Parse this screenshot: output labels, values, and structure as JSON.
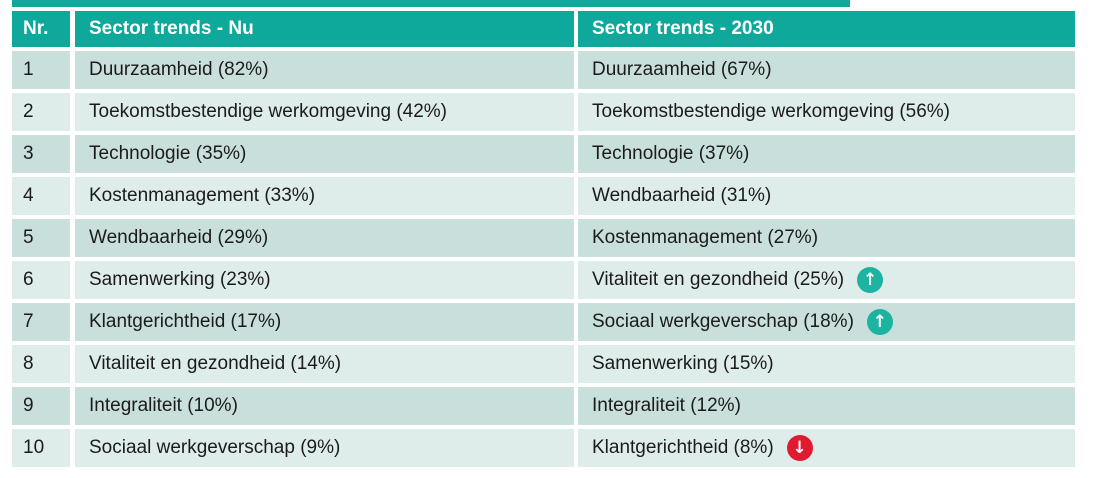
{
  "table": {
    "headers": {
      "nr": "Nr.",
      "now": "Sector trends - Nu",
      "future": "Sector trends - 2030"
    },
    "rows": [
      {
        "nr": "1",
        "now": "Duurzaamheid (82%)",
        "future": "Duurzaamheid (67%)",
        "future_trend": null
      },
      {
        "nr": "2",
        "now": "Toekomstbestendige werkomgeving (42%)",
        "future": "Toekomstbestendige werkomgeving (56%)",
        "future_trend": null
      },
      {
        "nr": "3",
        "now": "Technologie (35%)",
        "future": "Technologie (37%)",
        "future_trend": null
      },
      {
        "nr": "4",
        "now": "Kostenmanagement (33%)",
        "future": "Wendbaarheid (31%)",
        "future_trend": null
      },
      {
        "nr": "5",
        "now": "Wendbaarheid (29%)",
        "future": "Kostenmanagement (27%)",
        "future_trend": null
      },
      {
        "nr": "6",
        "now": "Samenwerking (23%)",
        "future": "Vitaliteit en gezondheid (25%)",
        "future_trend": "up"
      },
      {
        "nr": "7",
        "now": "Klantgerichtheid (17%)",
        "future": "Sociaal werkgeverschap (18%)",
        "future_trend": "up"
      },
      {
        "nr": "8",
        "now": "Vitaliteit en gezondheid (14%)",
        "future": "Samenwerking (15%)",
        "future_trend": null
      },
      {
        "nr": "9",
        "now": "Integraliteit (10%)",
        "future": "Integraliteit (12%)",
        "future_trend": null
      },
      {
        "nr": "10",
        "now": "Sociaal werkgeverschap (9%)",
        "future": "Klantgerichtheid (8%)",
        "future_trend": "down"
      }
    ]
  },
  "icons": {
    "trend_up_icon": "↑",
    "trend_down_icon": "↓"
  },
  "colors": {
    "header_teal": "#0FA99B",
    "accent_bar": "#0FA99B",
    "row_shade_dark": "#C9DFDB",
    "row_shade_light": "#DFEDEA",
    "trend_up_circle": "#1CB3A0",
    "trend_down_circle": "#E01B31",
    "header_text": "#FFFFFF",
    "body_text": "#1B1B1B"
  },
  "chart_data": {
    "type": "table",
    "title": "Sector trends ranking - Nu vs 2030",
    "columns": [
      "Nr.",
      "Sector trends - Nu",
      "Sector trends - 2030"
    ],
    "series": [
      {
        "name": "Sector trends - Nu",
        "items": [
          {
            "rank": 1,
            "label": "Duurzaamheid",
            "pct": 82
          },
          {
            "rank": 2,
            "label": "Toekomstbestendige werkomgeving",
            "pct": 42
          },
          {
            "rank": 3,
            "label": "Technologie",
            "pct": 35
          },
          {
            "rank": 4,
            "label": "Kostenmanagement",
            "pct": 33
          },
          {
            "rank": 5,
            "label": "Wendbaarheid",
            "pct": 29
          },
          {
            "rank": 6,
            "label": "Samenwerking",
            "pct": 23
          },
          {
            "rank": 7,
            "label": "Klantgerichtheid",
            "pct": 17
          },
          {
            "rank": 8,
            "label": "Vitaliteit en gezondheid",
            "pct": 14
          },
          {
            "rank": 9,
            "label": "Integraliteit",
            "pct": 10
          },
          {
            "rank": 10,
            "label": "Sociaal werkgeverschap",
            "pct": 9
          }
        ]
      },
      {
        "name": "Sector trends - 2030",
        "items": [
          {
            "rank": 1,
            "label": "Duurzaamheid",
            "pct": 67,
            "trend": null
          },
          {
            "rank": 2,
            "label": "Toekomstbestendige werkomgeving",
            "pct": 56,
            "trend": null
          },
          {
            "rank": 3,
            "label": "Technologie",
            "pct": 37,
            "trend": null
          },
          {
            "rank": 4,
            "label": "Wendbaarheid",
            "pct": 31,
            "trend": null
          },
          {
            "rank": 5,
            "label": "Kostenmanagement",
            "pct": 27,
            "trend": null
          },
          {
            "rank": 6,
            "label": "Vitaliteit en gezondheid",
            "pct": 25,
            "trend": "up"
          },
          {
            "rank": 7,
            "label": "Sociaal werkgeverschap",
            "pct": 18,
            "trend": "up"
          },
          {
            "rank": 8,
            "label": "Samenwerking",
            "pct": 15,
            "trend": null
          },
          {
            "rank": 9,
            "label": "Integraliteit",
            "pct": 12,
            "trend": null
          },
          {
            "rank": 10,
            "label": "Klantgerichtheid",
            "pct": 8,
            "trend": "down"
          }
        ]
      }
    ]
  }
}
